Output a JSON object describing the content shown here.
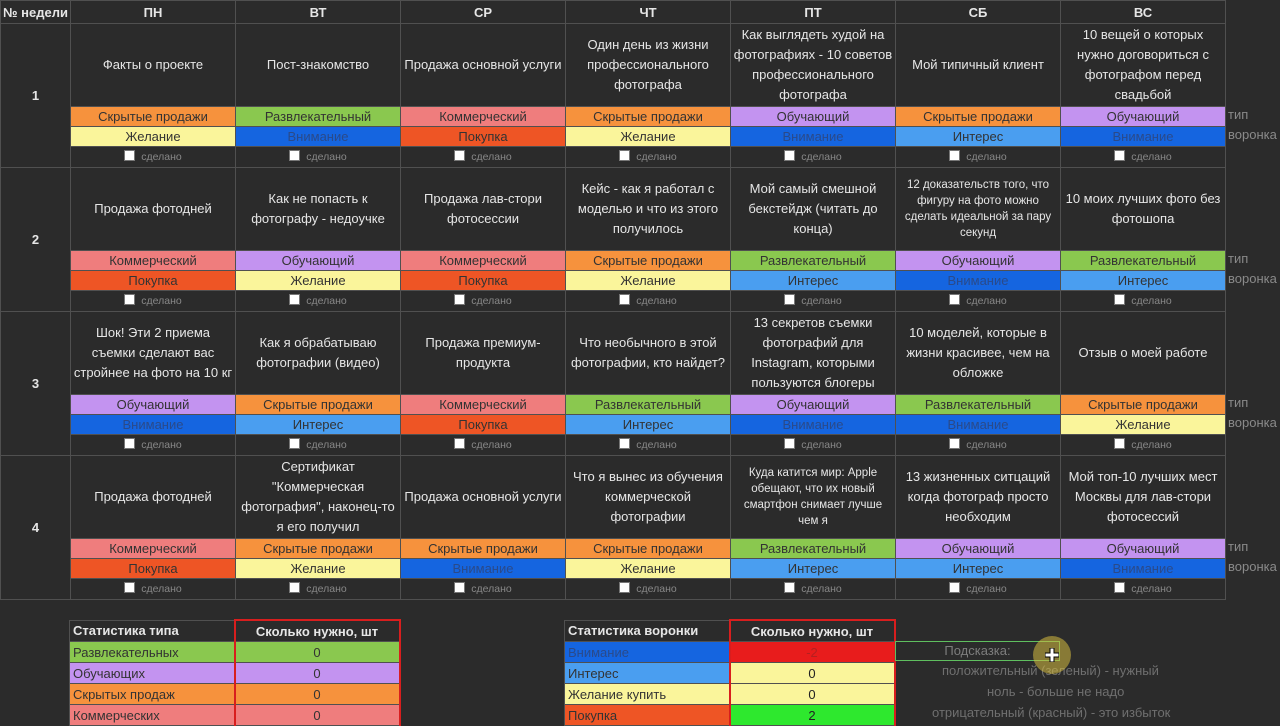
{
  "header": {
    "week_label": "№ недели",
    "days": [
      "ПН",
      "ВТ",
      "СР",
      "ЧТ",
      "ПТ",
      "СБ",
      "ВС"
    ]
  },
  "done_label": "сделано",
  "side_labels": {
    "type": "тип",
    "funnel": "воронка"
  },
  "colors": {
    "Скрытые продажи": "#f6923d",
    "Развлекательный": "#8ac84f",
    "Коммерческий": "#ef7d7d",
    "Обучающий": "#c393f0",
    "Желание": "#faf59b",
    "Внимание": "#1565e0",
    "Покупка": "#ee5525",
    "Интерес": "#4a9ef0"
  },
  "weeks": [
    {
      "num": "1",
      "cells": [
        {
          "topic": "Факты о проекте",
          "type": "Скрытые продажи",
          "funnel": "Желание"
        },
        {
          "topic": "Пост-знакомство",
          "type": "Развлекательный",
          "funnel": "Внимание"
        },
        {
          "topic": "Продажа основной услуги",
          "type": "Коммерческий",
          "funnel": "Покупка"
        },
        {
          "topic": "Один день из жизни профессионального фотографа",
          "type": "Скрытые продажи",
          "funnel": "Желание"
        },
        {
          "topic": "Как выглядеть худой на фотографиях - 10 советов профессионального фотографа",
          "type": "Обучающий",
          "funnel": "Внимание"
        },
        {
          "topic": "Мой типичный клиент",
          "type": "Скрытые продажи",
          "funnel": "Интерес"
        },
        {
          "topic": "10 вещей о которых нужно договориться с фотографом перед свадьбой",
          "type": "Обучающий",
          "funnel": "Внимание"
        }
      ]
    },
    {
      "num": "2",
      "cells": [
        {
          "topic": "Продажа фотодней",
          "type": "Коммерческий",
          "funnel": "Покупка"
        },
        {
          "topic": "Как не попасть к фотографу - недоучке",
          "type": "Обучающий",
          "funnel": "Желание"
        },
        {
          "topic": "Продажа лав-стори фотосессии",
          "type": "Коммерческий",
          "funnel": "Покупка"
        },
        {
          "topic": "Кейс - как я работал с моделью и что из этого получилось",
          "type": "Скрытые продажи",
          "funnel": "Желание"
        },
        {
          "topic": "Мой самый смешной бекстейдж (читать до конца)",
          "type": "Развлекательный",
          "funnel": "Интерес"
        },
        {
          "topic": "12 доказательств того, что фигуру на фото можно сделать идеальной за пару секунд",
          "type": "Обучающий",
          "funnel": "Внимание",
          "small": true
        },
        {
          "topic": "10 моих лучших фото без фотошопа",
          "type": "Развлекательный",
          "funnel": "Интерес"
        }
      ]
    },
    {
      "num": "3",
      "cells": [
        {
          "topic": "Шок! Эти 2 приема съемки сделают вас стройнее на фото на 10 кг",
          "type": "Обучающий",
          "funnel": "Внимание"
        },
        {
          "topic": "Как я обрабатываю фотографии (видео)",
          "type": "Скрытые продажи",
          "funnel": "Интерес"
        },
        {
          "topic": "Продажа премиум-продукта",
          "type": "Коммерческий",
          "funnel": "Покупка"
        },
        {
          "topic": "Что необычного в этой фотографии, кто найдет?",
          "type": "Развлекательный",
          "funnel": "Интерес"
        },
        {
          "topic": "13 секретов съемки фотографий для Instagram, которыми пользуются блогеры",
          "type": "Обучающий",
          "funnel": "Внимание"
        },
        {
          "topic": "10 моделей, которые в жизни красивее, чем на обложке",
          "type": "Развлекательный",
          "funnel": "Внимание"
        },
        {
          "topic": "Отзыв о моей работе",
          "type": "Скрытые продажи",
          "funnel": "Желание"
        }
      ]
    },
    {
      "num": "4",
      "cells": [
        {
          "topic": "Продажа фотодней",
          "type": "Коммерческий",
          "funnel": "Покупка"
        },
        {
          "topic": "Сертификат \"Коммерческая фотография\", наконец-то я его получил",
          "type": "Скрытые продажи",
          "funnel": "Желание"
        },
        {
          "topic": "Продажа основной услуги",
          "type": "Скрытые продажи",
          "funnel": "Внимание"
        },
        {
          "topic": "Что я вынес из обучения коммерческой фотографии",
          "type": "Скрытые продажи",
          "funnel": "Желание"
        },
        {
          "topic": "Куда катится мир: Apple обещают, что их новый смартфон снимает лучше чем я",
          "type": "Развлекательный",
          "funnel": "Интерес",
          "small": true
        },
        {
          "topic": "13 жизненных ситцаций когда фотограф просто необходим",
          "type": "Обучающий",
          "funnel": "Интерес"
        },
        {
          "topic": "Мой топ-10 лучших мест Москвы для лав-стори фотосессий",
          "type": "Обучающий",
          "funnel": "Внимание"
        }
      ]
    }
  ],
  "type_stats": {
    "header": "Статистика типа",
    "need_header": "Сколько нужно, шт",
    "rows": [
      {
        "label": "Развлекательных",
        "value": "0",
        "color": "#8ac84f",
        "valcolor": "#8ac84f"
      },
      {
        "label": "Обучающих",
        "value": "0",
        "color": "#c393f0",
        "valcolor": "#c393f0"
      },
      {
        "label": "Скрытых продаж",
        "value": "0",
        "color": "#f6923d",
        "valcolor": "#f6923d"
      },
      {
        "label": "Коммерческих",
        "value": "0",
        "color": "#ef7d7d",
        "valcolor": "#ef7d7d"
      }
    ]
  },
  "funnel_stats": {
    "header": "Статистика воронки",
    "need_header": "Сколько нужно, шт",
    "rows": [
      {
        "label": "Внимание",
        "value": "-2",
        "color": "#1565e0",
        "valcolor": "#e81c1c",
        "textcolor": "#b52020"
      },
      {
        "label": "Интерес",
        "value": "0",
        "color": "#4a9ef0",
        "valcolor": "#faf59b",
        "textcolor": "#222"
      },
      {
        "label": "Желание купить",
        "value": "0",
        "color": "#faf59b",
        "valcolor": "#faf59b",
        "textcolor": "#222"
      },
      {
        "label": "Покупка",
        "value": "2",
        "color": "#ee5525",
        "valcolor": "#2ee82e",
        "textcolor": "#222"
      }
    ]
  },
  "hint": {
    "title": "Подсказка:",
    "lines": [
      "положительный (зеленый) - нужный",
      "ноль - больше не надо",
      "отрицательный (красный) - это избыток"
    ]
  }
}
